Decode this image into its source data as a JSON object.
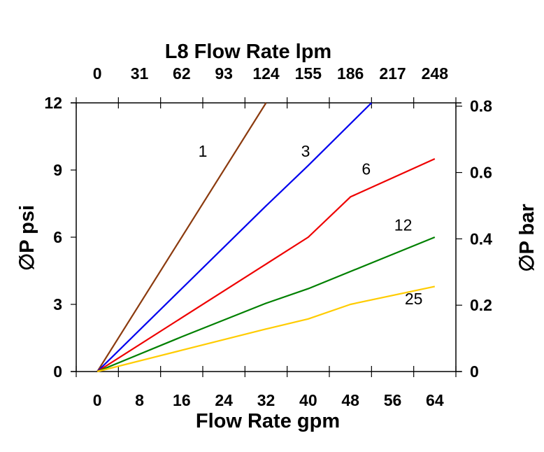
{
  "chart_data": {
    "type": "line",
    "top_axis_title": "L8 Flow Rate lpm",
    "xlabel": "Flow Rate gpm",
    "ylabel": "∅P psi",
    "ylabel_right": "∅P bar",
    "xlim": [
      -4,
      68
    ],
    "ylim": [
      0,
      12
    ],
    "ylim_right": [
      0,
      0.81
    ],
    "x_ticks": [
      "0",
      "8",
      "16",
      "24",
      "32",
      "40",
      "48",
      "56",
      "64"
    ],
    "top_ticks": [
      "0",
      "31",
      "62",
      "93",
      "124",
      "155",
      "186",
      "217",
      "248"
    ],
    "y_ticks": [
      "0",
      "3",
      "6",
      "9",
      "12"
    ],
    "y_right_ticks": [
      "0",
      "0.2",
      "0.4",
      "0.6",
      "0.8"
    ],
    "grid": false,
    "series": [
      {
        "name": "1",
        "color": "#8B3A0E",
        "x": [
          0,
          32
        ],
        "y": [
          0,
          12
        ],
        "label_at": [
          20,
          9.6
        ]
      },
      {
        "name": "3",
        "color": "#0000EE",
        "x": [
          0,
          16,
          32,
          40,
          52
        ],
        "y": [
          0,
          3.7,
          7.4,
          9.2,
          12
        ],
        "label_at": [
          39.5,
          9.6
        ]
      },
      {
        "name": "6",
        "color": "#EE0000",
        "x": [
          0,
          16,
          32,
          40,
          48,
          64
        ],
        "y": [
          0,
          2.4,
          4.8,
          6.0,
          7.8,
          9.5
        ],
        "label_at": [
          51,
          8.8
        ]
      },
      {
        "name": "12",
        "color": "#008000",
        "x": [
          0,
          16,
          32,
          40,
          64
        ],
        "y": [
          0,
          1.55,
          3.05,
          3.7,
          6.0
        ],
        "label_at": [
          58,
          6.3
        ]
      },
      {
        "name": "25",
        "color": "#FFCC00",
        "x": [
          0,
          16,
          32,
          40,
          48,
          64
        ],
        "y": [
          0,
          0.95,
          1.9,
          2.35,
          3.0,
          3.8
        ],
        "label_at": [
          60,
          3.0
        ]
      }
    ]
  }
}
